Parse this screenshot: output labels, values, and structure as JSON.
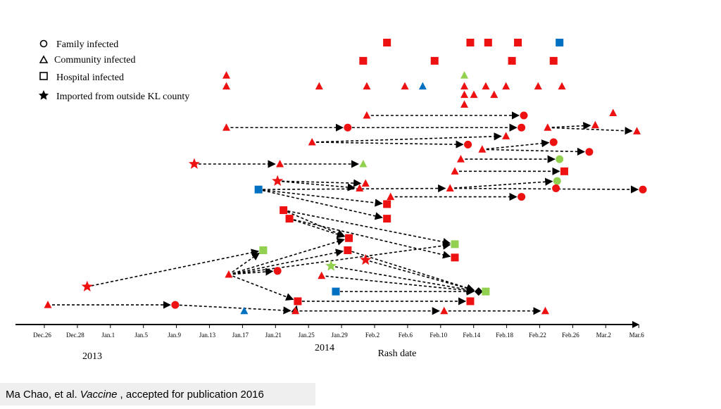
{
  "chart_data": {
    "type": "transmission-timeline",
    "title": "",
    "xlabel": "Rash date",
    "year_labels": [
      "2013",
      "2014"
    ],
    "tick_labels": [
      "Dec.26",
      "Dec.28",
      "Jan.1",
      "Jan.5",
      "Jan.9",
      "Jan.13",
      "Jan.17",
      "Jan.21",
      "Jan.25",
      "Jan.29",
      "Feb.2",
      "Feb.6",
      "Feb.10",
      "Feb.14",
      "Feb.18",
      "Feb.22",
      "Feb.26",
      "Mar.2",
      "Mar.6"
    ],
    "legend": [
      {
        "shape": "circle",
        "label": "Family  infected"
      },
      {
        "shape": "triangle",
        "label": "Community  infected"
      },
      {
        "shape": "square",
        "label": "Hospital  infected"
      },
      {
        "shape": "star",
        "label": "Imported from outside  KL county"
      }
    ],
    "colors": {
      "red": "#ee1111",
      "green": "#92d050",
      "blue": "#0070c0",
      "black": "#000000"
    },
    "cases": [
      {
        "id": "s1",
        "day": 28.5,
        "row": 2,
        "shape": "square",
        "color": "red"
      },
      {
        "id": "s2",
        "day": 35.5,
        "row": 2,
        "shape": "square",
        "color": "red"
      },
      {
        "id": "s3",
        "day": 37,
        "row": 2,
        "shape": "square",
        "color": "red"
      },
      {
        "id": "s4",
        "day": 39.5,
        "row": 2,
        "shape": "square",
        "color": "red"
      },
      {
        "id": "s5",
        "day": 43,
        "row": 2,
        "shape": "square",
        "color": "blue"
      },
      {
        "id": "s6",
        "day": 26.5,
        "row": 3.5,
        "shape": "square",
        "color": "red"
      },
      {
        "id": "s7",
        "day": 32.5,
        "row": 3.5,
        "shape": "square",
        "color": "red"
      },
      {
        "id": "s8",
        "day": 39,
        "row": 3.5,
        "shape": "square",
        "color": "red"
      },
      {
        "id": "s9",
        "day": 42.5,
        "row": 3.5,
        "shape": "square",
        "color": "red"
      },
      {
        "id": "t1",
        "day": 15,
        "row": 4.7,
        "shape": "triangle",
        "color": "red"
      },
      {
        "id": "t2",
        "day": 35,
        "row": 4.7,
        "shape": "triangle",
        "color": "green"
      },
      {
        "id": "t3",
        "day": 15,
        "row": 5.6,
        "shape": "triangle",
        "color": "red"
      },
      {
        "id": "t4",
        "day": 22.8,
        "row": 5.6,
        "shape": "triangle",
        "color": "red"
      },
      {
        "id": "t5",
        "day": 26.8,
        "row": 5.6,
        "shape": "triangle",
        "color": "red"
      },
      {
        "id": "t6",
        "day": 30,
        "row": 5.6,
        "shape": "triangle",
        "color": "red"
      },
      {
        "id": "t7",
        "day": 31.5,
        "row": 5.6,
        "shape": "triangle",
        "color": "blue"
      },
      {
        "id": "t8",
        "day": 35,
        "row": 5.6,
        "shape": "triangle",
        "color": "red"
      },
      {
        "id": "t9",
        "day": 36.8,
        "row": 5.6,
        "shape": "triangle",
        "color": "red"
      },
      {
        "id": "t10",
        "day": 38.5,
        "row": 5.6,
        "shape": "triangle",
        "color": "red"
      },
      {
        "id": "t11",
        "day": 41.2,
        "row": 5.6,
        "shape": "triangle",
        "color": "red"
      },
      {
        "id": "t12",
        "day": 43.2,
        "row": 5.6,
        "shape": "triangle",
        "color": "red"
      },
      {
        "id": "t13",
        "day": 35,
        "row": 6.3,
        "shape": "triangle",
        "color": "red"
      },
      {
        "id": "t14",
        "day": 35.8,
        "row": 6.3,
        "shape": "triangle",
        "color": "red"
      },
      {
        "id": "t15",
        "day": 37.5,
        "row": 6.3,
        "shape": "triangle",
        "color": "red"
      },
      {
        "id": "t16",
        "day": 35,
        "row": 7.1,
        "shape": "triangle",
        "color": "red"
      },
      {
        "id": "a1",
        "day": 26.8,
        "row": 8,
        "shape": "triangle",
        "color": "red"
      },
      {
        "id": "a2",
        "day": 40,
        "row": 8,
        "shape": "circle",
        "color": "red"
      },
      {
        "id": "a3",
        "day": 47.5,
        "row": 7.8,
        "shape": "triangle",
        "color": "red"
      },
      {
        "id": "b1",
        "day": 15,
        "row": 9,
        "shape": "triangle",
        "color": "red"
      },
      {
        "id": "b2",
        "day": 25.2,
        "row": 9,
        "shape": "circle",
        "color": "red"
      },
      {
        "id": "b3",
        "day": 39.8,
        "row": 9,
        "shape": "circle",
        "color": "red"
      },
      {
        "id": "b4",
        "day": 42,
        "row": 9,
        "shape": "triangle",
        "color": "red"
      },
      {
        "id": "b5",
        "day": 46,
        "row": 8.8,
        "shape": "triangle",
        "color": "red"
      },
      {
        "id": "b6",
        "day": 49.5,
        "row": 9.3,
        "shape": "triangle",
        "color": "red"
      },
      {
        "id": "c1",
        "day": 22.2,
        "row": 10.2,
        "shape": "triangle",
        "color": "red"
      },
      {
        "id": "c2",
        "day": 38.5,
        "row": 9.7,
        "shape": "triangle",
        "color": "red"
      },
      {
        "id": "c3",
        "day": 35.3,
        "row": 10.4,
        "shape": "circle",
        "color": "red"
      },
      {
        "id": "c4",
        "day": 42.5,
        "row": 10.2,
        "shape": "circle",
        "color": "red"
      },
      {
        "id": "c5",
        "day": 36.5,
        "row": 10.8,
        "shape": "triangle",
        "color": "red"
      },
      {
        "id": "c6",
        "day": 45.5,
        "row": 11,
        "shape": "circle",
        "color": "red"
      },
      {
        "id": "d1",
        "day": 12.3,
        "row": 12,
        "shape": "star",
        "color": "red"
      },
      {
        "id": "d2",
        "day": 19.5,
        "row": 12,
        "shape": "triangle",
        "color": "red"
      },
      {
        "id": "d3",
        "day": 26.5,
        "row": 12,
        "shape": "triangle",
        "color": "green"
      },
      {
        "id": "d4",
        "day": 34.7,
        "row": 11.6,
        "shape": "triangle",
        "color": "red"
      },
      {
        "id": "d5",
        "day": 43,
        "row": 11.6,
        "shape": "circle",
        "color": "green"
      },
      {
        "id": "e1",
        "day": 34.2,
        "row": 12.6,
        "shape": "triangle",
        "color": "red"
      },
      {
        "id": "e2",
        "day": 43.4,
        "row": 12.6,
        "shape": "square",
        "color": "red"
      },
      {
        "id": "f1",
        "day": 19.3,
        "row": 13.4,
        "shape": "star",
        "color": "red"
      },
      {
        "id": "f2",
        "day": 26.7,
        "row": 13.6,
        "shape": "triangle",
        "color": "red"
      },
      {
        "id": "f3",
        "day": 26.2,
        "row": 14,
        "shape": "triangle",
        "color": "red"
      },
      {
        "id": "f4",
        "day": 33.8,
        "row": 14,
        "shape": "triangle",
        "color": "red"
      },
      {
        "id": "f5",
        "day": 42.8,
        "row": 13.4,
        "shape": "circle",
        "color": "green"
      },
      {
        "id": "f6",
        "day": 42.7,
        "row": 14,
        "shape": "circle",
        "color": "red"
      },
      {
        "id": "f7",
        "day": 50,
        "row": 14.1,
        "shape": "circle",
        "color": "red"
      },
      {
        "id": "g1",
        "day": 17.7,
        "row": 14.1,
        "shape": "square",
        "color": "blue"
      },
      {
        "id": "g2",
        "day": 28.8,
        "row": 14.7,
        "shape": "triangle",
        "color": "red"
      },
      {
        "id": "g3",
        "day": 39.8,
        "row": 14.7,
        "shape": "circle",
        "color": "red"
      },
      {
        "id": "h1",
        "day": 28.5,
        "row": 15.3,
        "shape": "square",
        "color": "red"
      },
      {
        "id": "h2",
        "day": 19.8,
        "row": 15.8,
        "shape": "square",
        "color": "red"
      },
      {
        "id": "h3",
        "day": 20.3,
        "row": 16.5,
        "shape": "square",
        "color": "red"
      },
      {
        "id": "h4",
        "day": 28.5,
        "row": 16.5,
        "shape": "square",
        "color": "red"
      },
      {
        "id": "i1",
        "day": 25.3,
        "row": 18.1,
        "shape": "square",
        "color": "red"
      },
      {
        "id": "i2",
        "day": 25.2,
        "row": 19.1,
        "shape": "square",
        "color": "red"
      },
      {
        "id": "i3",
        "day": 34.2,
        "row": 18.6,
        "shape": "square",
        "color": "green"
      },
      {
        "id": "i4",
        "day": 34.2,
        "row": 19.7,
        "shape": "square",
        "color": "red"
      },
      {
        "id": "i5",
        "day": 18.1,
        "row": 19.1,
        "shape": "square",
        "color": "green"
      },
      {
        "id": "j1",
        "day": 23.8,
        "row": 20.4,
        "shape": "star",
        "color": "green"
      },
      {
        "id": "j2",
        "day": 26.7,
        "row": 19.9,
        "shape": "star",
        "color": "red"
      },
      {
        "id": "j3",
        "day": 3.3,
        "row": 22.1,
        "shape": "star",
        "color": "red"
      },
      {
        "id": "j4",
        "day": 15.2,
        "row": 21.1,
        "shape": "triangle",
        "color": "red"
      },
      {
        "id": "j5",
        "day": 19.3,
        "row": 20.8,
        "shape": "circle",
        "color": "red"
      },
      {
        "id": "j6",
        "day": 23,
        "row": 21.2,
        "shape": "triangle",
        "color": "red"
      },
      {
        "id": "k1",
        "day": 24.2,
        "row": 22.5,
        "shape": "square",
        "color": "blue"
      },
      {
        "id": "k2",
        "day": 36.2,
        "row": 22.5,
        "shape": "diamond",
        "color": "black"
      },
      {
        "id": "k3",
        "day": 36.8,
        "row": 22.5,
        "shape": "square",
        "color": "green"
      },
      {
        "id": "l1",
        "day": 21,
        "row": 23.3,
        "shape": "square",
        "color": "red"
      },
      {
        "id": "l2",
        "day": 35.5,
        "row": 23.3,
        "shape": "square",
        "color": "red"
      },
      {
        "id": "m1",
        "day": 0,
        "row": 23.6,
        "shape": "triangle",
        "color": "red"
      },
      {
        "id": "m2",
        "day": 10.7,
        "row": 23.6,
        "shape": "circle",
        "color": "red"
      },
      {
        "id": "m3",
        "day": 16.5,
        "row": 24.1,
        "shape": "triangle",
        "color": "blue"
      },
      {
        "id": "m4",
        "day": 20.8,
        "row": 24.1,
        "shape": "triangle",
        "color": "red"
      },
      {
        "id": "m5",
        "day": 33.3,
        "row": 24.1,
        "shape": "triangle",
        "color": "red"
      },
      {
        "id": "m6",
        "day": 41.8,
        "row": 24.1,
        "shape": "triangle",
        "color": "red"
      }
    ],
    "links": [
      [
        "a1",
        "a2"
      ],
      [
        "b1",
        "b2"
      ],
      [
        "b2",
        "b3"
      ],
      [
        "b4",
        "b5"
      ],
      [
        "b4",
        "b6"
      ],
      [
        "c1",
        "c2"
      ],
      [
        "c1",
        "c3"
      ],
      [
        "c5",
        "c4"
      ],
      [
        "c5",
        "c6"
      ],
      [
        "d1",
        "d2"
      ],
      [
        "d2",
        "d3"
      ],
      [
        "d4",
        "d5"
      ],
      [
        "e1",
        "e2"
      ],
      [
        "f1",
        "f2"
      ],
      [
        "f1",
        "f3"
      ],
      [
        "f4",
        "f5"
      ],
      [
        "f4",
        "f7"
      ],
      [
        "g1",
        "f4"
      ],
      [
        "g1",
        "h1"
      ],
      [
        "g1",
        "h4"
      ],
      [
        "g2",
        "g3"
      ],
      [
        "h2",
        "i1"
      ],
      [
        "h2",
        "i3"
      ],
      [
        "h3",
        "i1"
      ],
      [
        "h3",
        "i4"
      ],
      [
        "j4",
        "i5"
      ],
      [
        "j4",
        "i1"
      ],
      [
        "j4",
        "i2"
      ],
      [
        "j4",
        "i3"
      ],
      [
        "j4",
        "j5"
      ],
      [
        "j4",
        "l1"
      ],
      [
        "j3",
        "i5"
      ],
      [
        "j1",
        "k2"
      ],
      [
        "j2",
        "k2"
      ],
      [
        "j6",
        "k2"
      ],
      [
        "i2",
        "k2"
      ],
      [
        "k1",
        "k2"
      ],
      [
        "l1",
        "l2"
      ],
      [
        "m1",
        "m2"
      ],
      [
        "m2",
        "m4"
      ],
      [
        "m4",
        "m5"
      ],
      [
        "m5",
        "m6"
      ],
      [
        "m4",
        "l1"
      ]
    ]
  },
  "citation": {
    "authors": "Ma Chao, et al.",
    "journal": "Vaccine",
    "note": ", accepted for publication 2016"
  }
}
